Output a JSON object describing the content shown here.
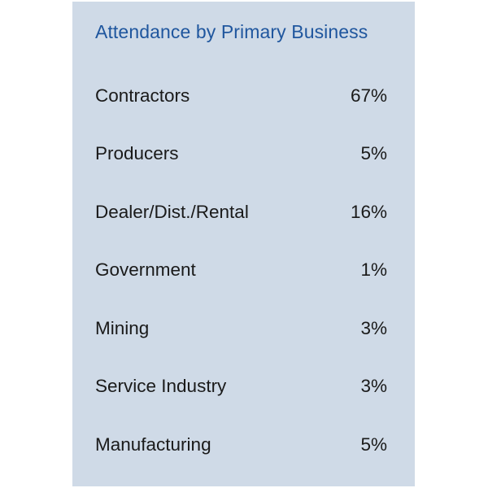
{
  "chart_data": {
    "type": "table",
    "title": "Attendance by Primary Business",
    "categories": [
      "Contractors",
      "Producers",
      "Dealer/Dist./Rental",
      "Government",
      "Mining",
      "Service Industry",
      "Manufacturing"
    ],
    "values": [
      "67%",
      "5%",
      "16%",
      "1%",
      "3%",
      "3%",
      "5%"
    ]
  },
  "colors": {
    "panel_background": "#cfdae7",
    "title_color": "#1f569e",
    "text_color": "#1a1a1a"
  }
}
